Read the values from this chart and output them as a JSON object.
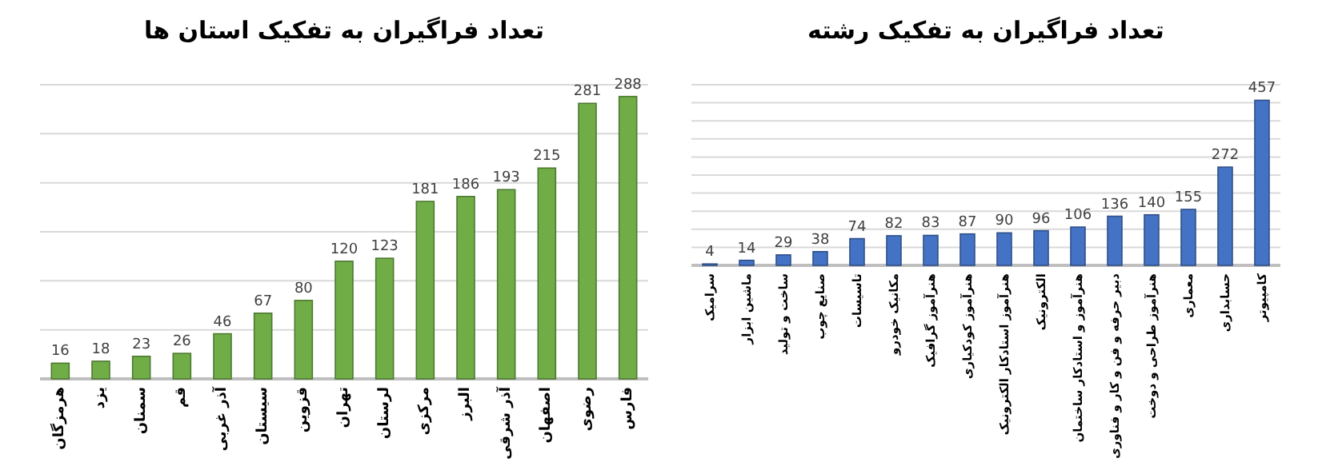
{
  "chart_data": [
    {
      "type": "bar",
      "title": "تعداد فراگیران به تفکیک استان ها",
      "categories": [
        "هرمزگان",
        "یزد",
        "سمنان",
        "قم",
        "آذر غربی",
        "سیستان",
        "قزوین",
        "تهران",
        "لرستان",
        "مرکزی",
        "البرز",
        "آذر شرقی",
        "اصفهان",
        "رضوی",
        "فارس"
      ],
      "values": [
        16,
        18,
        23,
        26,
        46,
        67,
        80,
        120,
        123,
        181,
        186,
        193,
        215,
        281,
        288
      ],
      "color": "#70ad47",
      "data_labels": true,
      "grid": "y",
      "tick_labels": "x",
      "ylim": [
        0,
        300
      ],
      "yticks": [
        {
          "value": 0,
          "label": null
        },
        {
          "value": 50,
          "label": null
        },
        {
          "value": 100,
          "label": null
        },
        {
          "value": 150,
          "label": null
        },
        {
          "value": 200,
          "label": null
        },
        {
          "value": 250,
          "label": null
        },
        {
          "value": 300,
          "label": null
        }
      ]
    },
    {
      "type": "bar",
      "title": "تعداد فراگیران به تفکیک رشته",
      "categories": [
        "سرامیک",
        "ماشین ابزار",
        "ساخت و تولید",
        "صنایع چوب",
        "تاسیسات",
        "مکانیک خودرو",
        "هنرآموز گرافیک",
        "هنرآموز کودکیاری",
        "هنرآموز استادکار الکترونیک",
        "الکترونیک",
        "هنرآموز و استادکار ساختمان",
        "دبیر حرفه و فن و کار و فناوری",
        "هنرآموز طراحی و دوخت",
        "معماری",
        "حسابداری",
        "کامپیوتر"
      ],
      "values": [
        4,
        14,
        29,
        38,
        74,
        82,
        83,
        87,
        90,
        96,
        106,
        136,
        140,
        155,
        272,
        457
      ],
      "color": "#4472c4",
      "data_labels": true,
      "grid": "y",
      "tick_labels": "x",
      "ylim": [
        0,
        500
      ],
      "yticks": [
        {
          "value": 0,
          "label": null
        },
        {
          "value": 50,
          "label": null
        },
        {
          "value": 100,
          "label": null
        },
        {
          "value": 150,
          "label": null
        },
        {
          "value": 200,
          "label": null
        },
        {
          "value": 250,
          "label": null
        },
        {
          "value": 300,
          "label": null
        },
        {
          "value": 350,
          "label": null
        },
        {
          "value": 400,
          "label": null
        },
        {
          "value": 450,
          "label": null
        },
        {
          "value": 500,
          "label": null
        }
      ]
    }
  ]
}
